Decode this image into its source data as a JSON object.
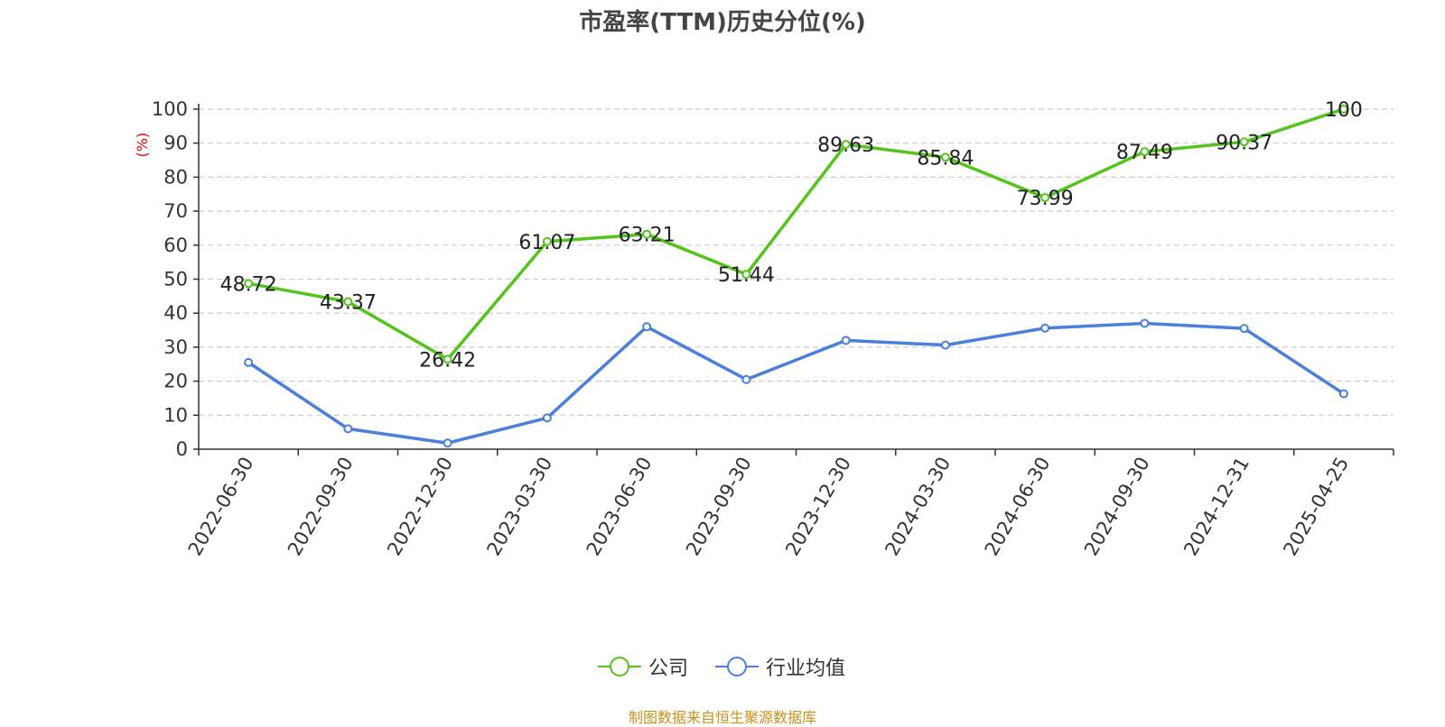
{
  "title": "市盈率(TTM)历史分位(%)",
  "source": "制图数据来自恒生聚源数据库",
  "chart_data": {
    "type": "line",
    "title": "市盈率(TTM)历史分位(%)",
    "ylabel": "(%)",
    "ylim": [
      0,
      100
    ],
    "yticks": [
      0,
      10,
      20,
      30,
      40,
      50,
      60,
      70,
      80,
      90,
      100
    ],
    "grid": true,
    "legend_position": "bottom-center",
    "categories": [
      "2022-06-30",
      "2022-09-30",
      "2022-12-30",
      "2023-03-30",
      "2023-06-30",
      "2023-09-30",
      "2023-12-30",
      "2024-03-30",
      "2024-06-30",
      "2024-09-30",
      "2024-12-31",
      "2025-04-25"
    ],
    "series": [
      {
        "name": "公司",
        "color": "#52c41a",
        "values": [
          48.72,
          43.37,
          26.42,
          61.07,
          63.21,
          51.44,
          89.63,
          85.84,
          73.99,
          87.49,
          90.37,
          100
        ],
        "labels": [
          "48.72",
          "43.37",
          "26.42",
          "61.07",
          "63.21",
          "51.44",
          "89.63",
          "85.84",
          "73.99",
          "87.49",
          "90.37",
          "100"
        ]
      },
      {
        "name": "行业均值",
        "color": "#4a7fdc",
        "values": [
          25.5,
          6.0,
          1.8,
          9.2,
          36.0,
          20.5,
          32.0,
          30.6,
          35.6,
          37.0,
          35.5,
          16.3
        ]
      }
    ]
  },
  "legend": {
    "items": [
      {
        "label": "公司",
        "color": "#52c41a"
      },
      {
        "label": "行业均值",
        "color": "#4a7fdc"
      }
    ]
  }
}
